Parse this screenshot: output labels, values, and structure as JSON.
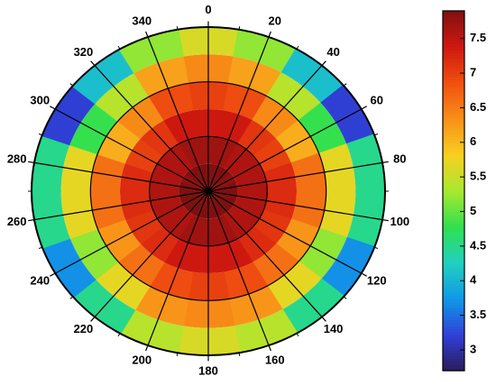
{
  "chart_data": {
    "type": "polar-heatmap",
    "thetaticks": [
      0,
      20,
      40,
      60,
      80,
      100,
      120,
      140,
      160,
      180,
      200,
      220,
      240,
      260,
      280,
      300,
      320,
      340
    ],
    "theta": [
      0,
      20,
      40,
      60,
      80,
      100,
      120,
      140,
      160,
      180,
      200,
      220,
      240,
      260,
      280,
      300,
      320,
      340
    ],
    "rlim": [
      0,
      6
    ],
    "r_bins": [
      0,
      1,
      2,
      3,
      4,
      5,
      6
    ],
    "rgrid": [
      2,
      4
    ],
    "grid": true,
    "values": [
      [
        7.9,
        7.9,
        7.9,
        7.8,
        7.9,
        7.9,
        7.9,
        7.9,
        7.9,
        7.9,
        7.9,
        7.9,
        7.9,
        7.9,
        7.9,
        7.8,
        7.9,
        7.9
      ],
      [
        7.7,
        7.7,
        7.6,
        7.6,
        7.6,
        7.6,
        7.6,
        7.6,
        7.7,
        7.7,
        7.7,
        7.6,
        7.6,
        7.6,
        7.6,
        7.6,
        7.6,
        7.7
      ],
      [
        7.4,
        7.4,
        7.1,
        7.0,
        7.2,
        7.2,
        7.1,
        7.2,
        7.4,
        7.4,
        7.4,
        7.2,
        7.1,
        7.2,
        7.2,
        7.0,
        7.1,
        7.4
      ],
      [
        7.0,
        6.9,
        6.4,
        6.1,
        6.6,
        6.6,
        6.3,
        6.6,
        6.9,
        7.0,
        6.9,
        6.6,
        6.3,
        6.6,
        6.6,
        6.1,
        6.4,
        6.9
      ],
      [
        6.4,
        6.2,
        5.4,
        4.8,
        5.7,
        5.7,
        5.2,
        5.7,
        6.3,
        6.4,
        6.3,
        5.7,
        5.2,
        5.7,
        5.7,
        4.8,
        5.4,
        6.2
      ],
      [
        5.6,
        5.2,
        4.1,
        3.2,
        4.5,
        4.5,
        3.7,
        4.5,
        5.4,
        5.6,
        5.4,
        4.5,
        3.7,
        4.5,
        4.5,
        3.2,
        4.1,
        5.2
      ]
    ],
    "zlim": [
      2.7,
      7.9
    ],
    "zticks": [
      3,
      3.5,
      4,
      4.5,
      5,
      5.5,
      6,
      6.5,
      7,
      7.5
    ],
    "colormap": [
      "#2b1b5a",
      "#3040d8",
      "#1098e8",
      "#20d0c0",
      "#30e050",
      "#a8e830",
      "#f8d020",
      "#f89018",
      "#f05010",
      "#d01810",
      "#801010"
    ]
  }
}
